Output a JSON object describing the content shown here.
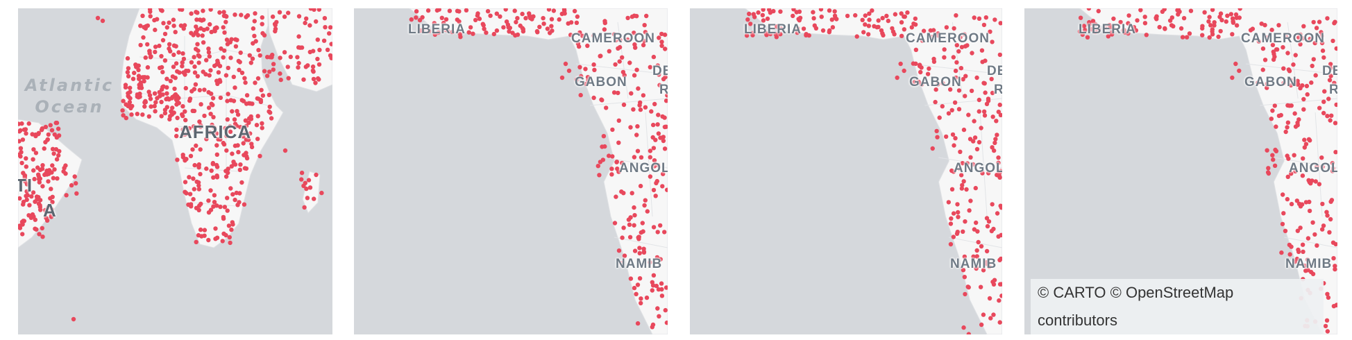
{
  "panels": [
    {
      "labels": {
        "ocean_line1": "Atlantic",
        "ocean_line2": "Ocean",
        "continent": "AFRICA",
        "fragment_left_1": "TI",
        "fragment_left_2": "A"
      }
    },
    {
      "labels": {
        "liberia": "LIBERIA",
        "cameroon": "CAMEROON",
        "gabon": "GABON",
        "dem": "DE",
        "dem2": "R",
        "angola": "ANGOL",
        "namibia": "NAMIB"
      }
    },
    {
      "labels": {
        "liberia": "LIBERIA",
        "cameroon": "CAMEROON",
        "gabon": "GABON",
        "dem": "DE",
        "dem2": "R",
        "angola": "ANGOL",
        "namibia": "NAMIB"
      }
    },
    {
      "labels": {
        "liberia": "LIBERIA",
        "cameroon": "CAMEROON",
        "gabon": "GABON",
        "dem": "DE",
        "dem2": "R",
        "angola": "ANGOL",
        "namibia": "NAMIB"
      }
    }
  ],
  "attribution": {
    "line1": "© CARTO © OpenStreetMap",
    "line2": "contributors"
  },
  "colors": {
    "water": "#d5d8dc",
    "land": "#f7f7f7",
    "border": "#dfe1e4",
    "point": "#e8485c"
  }
}
